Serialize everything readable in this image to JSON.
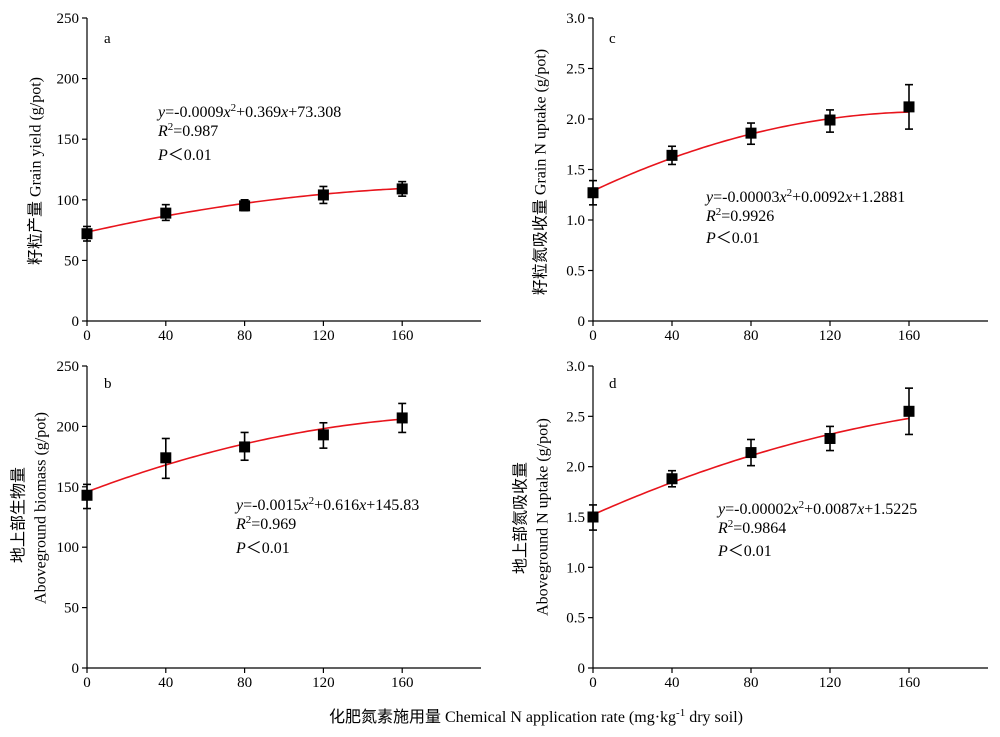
{
  "figure": {
    "xlabel": [
      {
        "text": "化肥氮素施用量 Chemical N application rate (mg·kg"
      },
      {
        "text": "-1",
        "sup": true
      },
      {
        "text": " dry soil)"
      }
    ]
  },
  "chart_data": [
    {
      "panel": "a",
      "type": "scatter",
      "ylabel": [
        "籽粒产量 Grain yield (g/pot)"
      ],
      "xlim": [
        0,
        200
      ],
      "ylim": [
        0,
        250
      ],
      "xticks": [
        0,
        40,
        80,
        120,
        160
      ],
      "yticks": [
        "0",
        "50",
        "100",
        "150",
        "200",
        "250"
      ],
      "grid": false,
      "x": [
        0,
        40,
        80,
        120,
        160
      ],
      "y": [
        72,
        89,
        95,
        104,
        109
      ],
      "y_lower": [
        66,
        83,
        91,
        97,
        103
      ],
      "y_upper": [
        78,
        96,
        100,
        111,
        115
      ],
      "marker_color": "#000000",
      "fit_curve": {
        "coefficients": [
          -0.0009,
          0.369,
          73.308
        ],
        "x_range": [
          0,
          160
        ],
        "color": "#e8141c"
      },
      "annotation": {
        "equation": [
          {
            "text": "y",
            "italic": true
          },
          {
            "text": "=-0.0009"
          },
          {
            "text": "x",
            "italic": true
          },
          {
            "text": "2",
            "sup": true
          },
          {
            "text": "+0.369"
          },
          {
            "text": "x",
            "italic": true
          },
          {
            "text": "+73.308"
          }
        ],
        "r_squared": [
          {
            "text": "R",
            "italic": true
          },
          {
            "text": "2",
            "sup": true
          },
          {
            "text": "=0.987"
          }
        ],
        "p_value": [
          {
            "text": "P",
            "italic": true
          },
          {
            "text": "＜0.01"
          }
        ]
      }
    },
    {
      "panel": "b",
      "type": "scatter",
      "ylabel": [
        "地上部生物量",
        "Aboveground biomass (g/pot)"
      ],
      "xlim": [
        0,
        200
      ],
      "ylim": [
        0,
        250
      ],
      "xticks": [
        0,
        40,
        80,
        120,
        160
      ],
      "yticks": [
        "0",
        "50",
        "100",
        "150",
        "200",
        "250"
      ],
      "grid": false,
      "x": [
        0,
        40,
        80,
        120,
        160
      ],
      "y": [
        143,
        174,
        183,
        193,
        207
      ],
      "y_lower": [
        132,
        157,
        172,
        182,
        195
      ],
      "y_upper": [
        152,
        190,
        195,
        203,
        219
      ],
      "marker_color": "#000000",
      "fit_curve": {
        "coefficients": [
          -0.0015,
          0.616,
          145.83
        ],
        "x_range": [
          0,
          160
        ],
        "color": "#e8141c"
      },
      "annotation": {
        "equation": [
          {
            "text": "y",
            "italic": true
          },
          {
            "text": "=-0.0015"
          },
          {
            "text": "x",
            "italic": true
          },
          {
            "text": "2",
            "sup": true
          },
          {
            "text": "+0.616"
          },
          {
            "text": "x",
            "italic": true
          },
          {
            "text": "+145.83"
          }
        ],
        "r_squared": [
          {
            "text": "R",
            "italic": true
          },
          {
            "text": "2",
            "sup": true
          },
          {
            "text": "=0.969"
          }
        ],
        "p_value": [
          {
            "text": "P",
            "italic": true
          },
          {
            "text": "＜0.01"
          }
        ]
      }
    },
    {
      "panel": "c",
      "type": "scatter",
      "ylabel": [
        "籽粒氮吸收量 Grain N uptake (g/pot)"
      ],
      "xlim": [
        0,
        200
      ],
      "ylim": [
        0,
        3.0
      ],
      "xticks": [
        0,
        40,
        80,
        120,
        160
      ],
      "yticks": [
        "0",
        "0.5",
        "1.0",
        "1.5",
        "2.0",
        "2.5",
        "3.0"
      ],
      "grid": false,
      "x": [
        0,
        40,
        80,
        120,
        160
      ],
      "y": [
        1.27,
        1.64,
        1.86,
        1.99,
        2.12
      ],
      "y_lower": [
        1.15,
        1.55,
        1.75,
        1.87,
        1.9
      ],
      "y_upper": [
        1.39,
        1.73,
        1.96,
        2.09,
        2.34
      ],
      "marker_color": "#000000",
      "fit_curve": {
        "coefficients": [
          -2.7e-05,
          0.0092,
          1.2881
        ],
        "x_range": [
          0,
          160
        ],
        "color": "#e8141c"
      },
      "annotation": {
        "equation": [
          {
            "text": "y",
            "italic": true
          },
          {
            "text": "=-0.00003"
          },
          {
            "text": "x",
            "italic": true
          },
          {
            "text": "2",
            "sup": true
          },
          {
            "text": "+0.0092"
          },
          {
            "text": "x",
            "italic": true
          },
          {
            "text": "+1.2881"
          }
        ],
        "r_squared": [
          {
            "text": "R",
            "italic": true
          },
          {
            "text": "2",
            "sup": true
          },
          {
            "text": "=0.9926"
          }
        ],
        "p_value": [
          {
            "text": "P",
            "italic": true
          },
          {
            "text": "＜0.01"
          }
        ]
      }
    },
    {
      "panel": "d",
      "type": "scatter",
      "ylabel": [
        "地上部氮吸收量",
        "Aboveground N uptake (g/pot)"
      ],
      "xlim": [
        0,
        200
      ],
      "ylim": [
        0,
        3.0
      ],
      "xticks": [
        0,
        40,
        80,
        120,
        160
      ],
      "yticks": [
        "0",
        "0.5",
        "1.0",
        "1.5",
        "2.0",
        "2.5",
        "3.0"
      ],
      "grid": false,
      "x": [
        0,
        40,
        80,
        120,
        160
      ],
      "y": [
        1.5,
        1.88,
        2.14,
        2.28,
        2.55
      ],
      "y_lower": [
        1.37,
        1.8,
        2.01,
        2.16,
        2.32
      ],
      "y_upper": [
        1.62,
        1.96,
        2.27,
        2.4,
        2.78
      ],
      "marker_color": "#000000",
      "fit_curve": {
        "coefficients": [
          -1.7e-05,
          0.0087,
          1.5225
        ],
        "x_range": [
          0,
          160
        ],
        "color": "#e8141c"
      },
      "annotation": {
        "equation": [
          {
            "text": "y",
            "italic": true
          },
          {
            "text": "=-0.00002"
          },
          {
            "text": "x",
            "italic": true
          },
          {
            "text": "2",
            "sup": true
          },
          {
            "text": "+0.0087"
          },
          {
            "text": "x",
            "italic": true
          },
          {
            "text": "+1.5225"
          }
        ],
        "r_squared": [
          {
            "text": "R",
            "italic": true
          },
          {
            "text": "2",
            "sup": true
          },
          {
            "text": "=0.9864"
          }
        ],
        "p_value": [
          {
            "text": "P",
            "italic": true
          },
          {
            "text": "＜0.01"
          }
        ]
      }
    }
  ]
}
